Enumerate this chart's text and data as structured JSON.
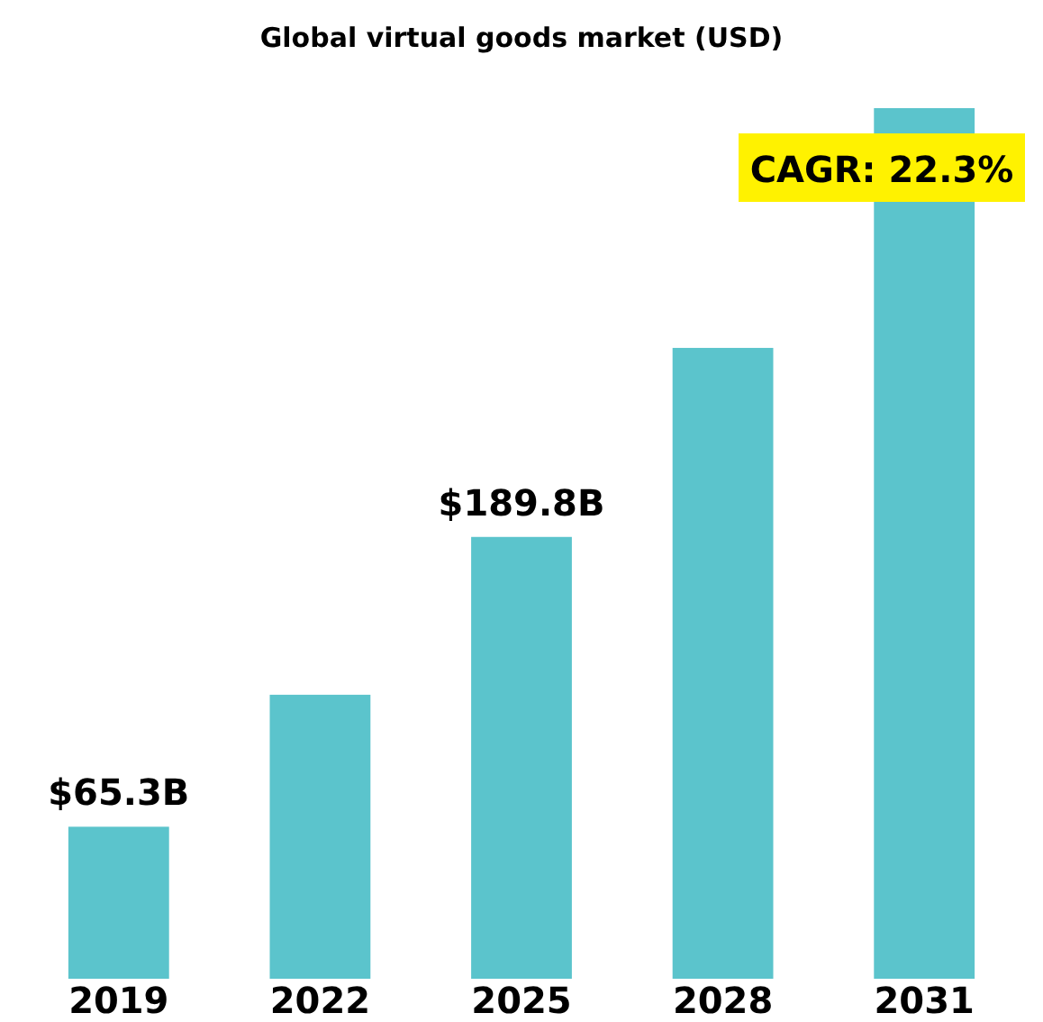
{
  "chart_data": {
    "type": "bar",
    "title": "Global virtual goods market (USD)",
    "categories": [
      "2019",
      "2022",
      "2025",
      "2028",
      "2031"
    ],
    "values": [
      65.3,
      122,
      189.8,
      271,
      374
    ],
    "value_labels": [
      "$65.3B",
      null,
      "$189.8B",
      null,
      null
    ],
    "color": "#5bc4cc",
    "annotations": [
      "CAGR: 22.3%"
    ]
  }
}
